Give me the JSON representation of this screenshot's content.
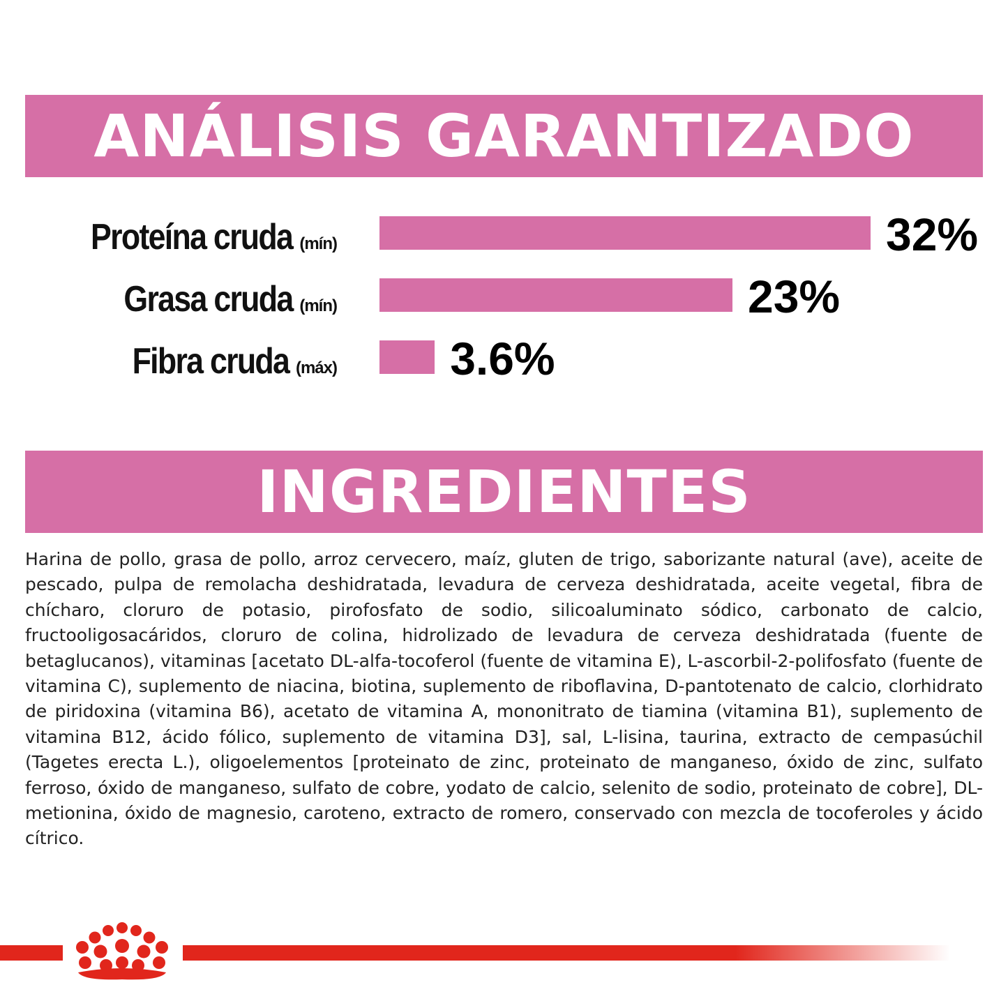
{
  "headers": {
    "analysis": "ANÁLISIS GARANTIZADO",
    "ingredients": "INGREDIENTES"
  },
  "chart_data": {
    "type": "bar",
    "orientation": "horizontal",
    "title": "ANÁLISIS GARANTIZADO",
    "categories": [
      "Proteína cruda (mín)",
      "Grasa cruda (mín)",
      "Fibra cruda (máx)"
    ],
    "values": [
      32,
      23,
      3.6
    ],
    "unit": "%",
    "xlim": [
      0,
      32
    ],
    "grid": false,
    "bar_color": "#d66fa6",
    "rows": [
      {
        "label": "Proteína cruda",
        "qualifier": "(mín)",
        "value": 32,
        "display": "32%"
      },
      {
        "label": "Grasa cruda",
        "qualifier": "(mín)",
        "value": 23,
        "display": "23%"
      },
      {
        "label": "Fibra cruda",
        "qualifier": "(máx)",
        "value": 3.6,
        "display": "3.6%"
      }
    ]
  },
  "ingredients": {
    "text": "Harina de pollo, grasa de pollo, arroz cervecero, maíz, gluten de trigo, saborizante natural (ave), aceite de pescado, pulpa de remolacha deshidratada, levadura de cerveza deshidratada, aceite vegetal, fibra de chícharo, cloruro de potasio, pirofosfato de sodio, silicoaluminato sódico, carbonato de calcio, fructooligosacáridos, cloruro de colina, hidrolizado de levadura de cerveza deshidratada (fuente de betaglucanos), vitaminas [acetato DL-alfa-tocoferol (fuente de vitamina E), L-ascorbil-2-polifosfato (fuente de vitamina C), suplemento de niacina, biotina, suplemento de riboflavina, D-pantotenato de calcio, clorhidrato de piridoxina (vitamina B6), acetato de vitamina A, mononitrato de tiamina (vitamina B1), suplemento de vitamina B12, ácido fólico, suplemento de vitamina D3], sal, L-lisina, taurina, extracto de cempasúchil (Tagetes erecta L.), oligoelementos [proteinato de zinc, proteinato de manganeso, óxido de zinc, sulfato ferroso, óxido de manganeso, sulfato de cobre, yodato de calcio, selenito de sodio, proteinato de cobre], DL-metionina, óxido de magnesio, caroteno, extracto de romero, conservado con mezcla de tocoferoles y ácido cítrico."
  },
  "footer": {
    "logo": "crown-logo-icon",
    "accent_color": "#e1261c"
  }
}
